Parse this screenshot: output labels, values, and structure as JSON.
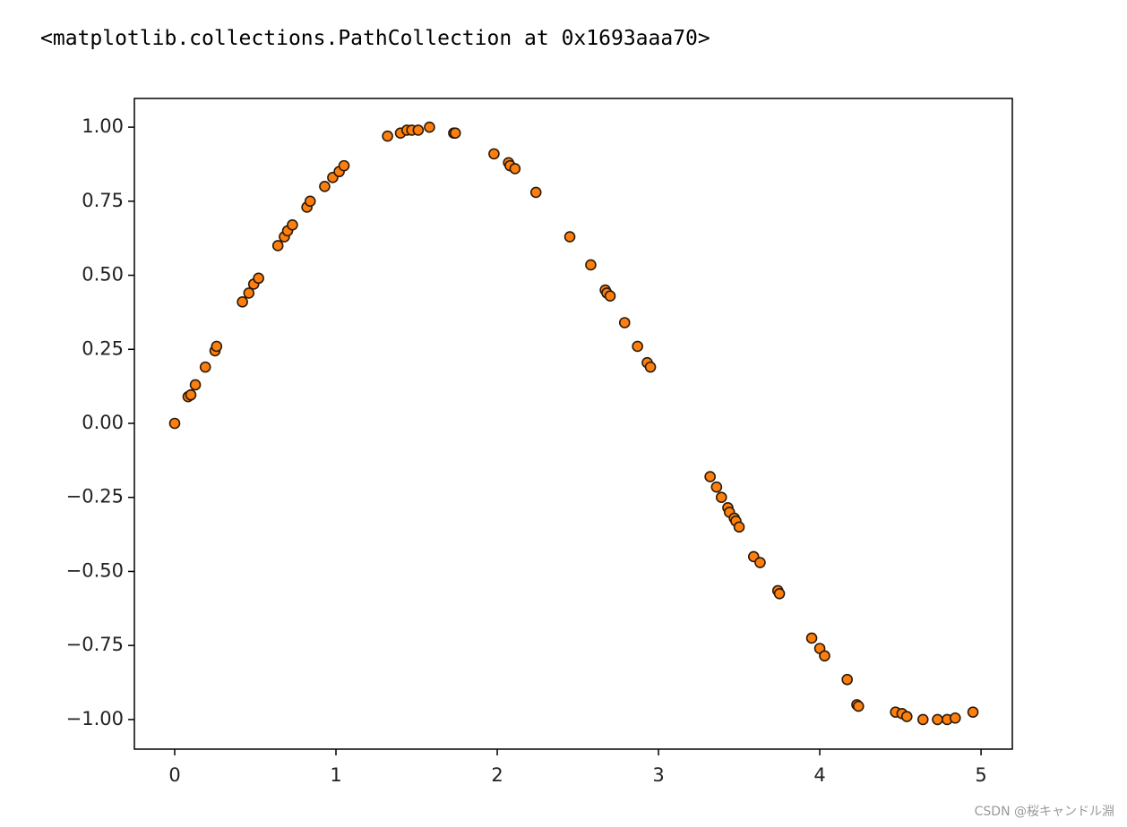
{
  "output_text": "<matplotlib.collections.PathCollection at 0x1693aaa70>",
  "watermark": "CSDN @桜キャンドル淵",
  "chart_data": {
    "type": "scatter",
    "x": [
      0,
      0.083,
      0.1,
      0.128,
      0.19,
      0.25,
      0.26,
      0.42,
      0.46,
      0.49,
      0.52,
      0.64,
      0.68,
      0.7,
      0.73,
      0.82,
      0.84,
      0.93,
      0.98,
      1.02,
      1.05,
      1.32,
      1.4,
      1.44,
      1.47,
      1.51,
      1.58,
      1.73,
      1.74,
      1.98,
      2.07,
      2.08,
      2.11,
      2.24,
      2.45,
      2.58,
      2.67,
      2.68,
      2.7,
      2.79,
      2.87,
      2.93,
      2.95,
      3.32,
      3.36,
      3.39,
      3.43,
      3.44,
      3.47,
      3.48,
      3.5,
      3.59,
      3.63,
      3.74,
      3.75,
      3.95,
      4.0,
      4.03,
      4.17,
      4.23,
      4.24,
      4.47,
      4.51,
      4.54,
      4.64,
      4.73,
      4.79,
      4.84,
      4.95
    ],
    "values": [
      0,
      0.09,
      0.096,
      0.13,
      0.19,
      0.245,
      0.26,
      0.41,
      0.44,
      0.47,
      0.49,
      0.6,
      0.63,
      0.65,
      0.67,
      0.73,
      0.75,
      0.8,
      0.83,
      0.85,
      0.87,
      0.97,
      0.98,
      0.99,
      0.99,
      0.99,
      1.0,
      0.98,
      0.98,
      0.91,
      0.88,
      0.87,
      0.86,
      0.78,
      0.63,
      0.535,
      0.45,
      0.44,
      0.43,
      0.34,
      0.26,
      0.205,
      0.19,
      -0.18,
      -0.215,
      -0.25,
      -0.285,
      -0.3,
      -0.32,
      -0.33,
      -0.35,
      -0.45,
      -0.47,
      -0.565,
      -0.575,
      -0.725,
      -0.76,
      -0.785,
      -0.865,
      -0.95,
      -0.955,
      -0.975,
      -0.98,
      -0.99,
      -1.0,
      -1.0,
      -1.0,
      -0.995,
      -0.975
    ],
    "color": "#ff7f0e",
    "edgecolor": "#2a1a0a",
    "xlim": [
      -0.25,
      5.194
    ],
    "ylim": [
      -1.1,
      1.097
    ],
    "xticks": [
      0,
      1,
      2,
      3,
      4,
      5
    ],
    "yticks": [
      {
        "value": 1,
        "label": "1.00"
      },
      {
        "value": 0.75,
        "label": "0.75"
      },
      {
        "value": 0.5,
        "label": "0.50"
      },
      {
        "value": 0.25,
        "label": "0.25"
      },
      {
        "value": 0,
        "label": "0.00"
      },
      {
        "value": -0.25,
        "label": "−0.25"
      },
      {
        "value": -0.5,
        "label": "−0.50"
      },
      {
        "value": -0.75,
        "label": "−0.75"
      },
      {
        "value": -1,
        "label": "−1.00"
      }
    ]
  }
}
